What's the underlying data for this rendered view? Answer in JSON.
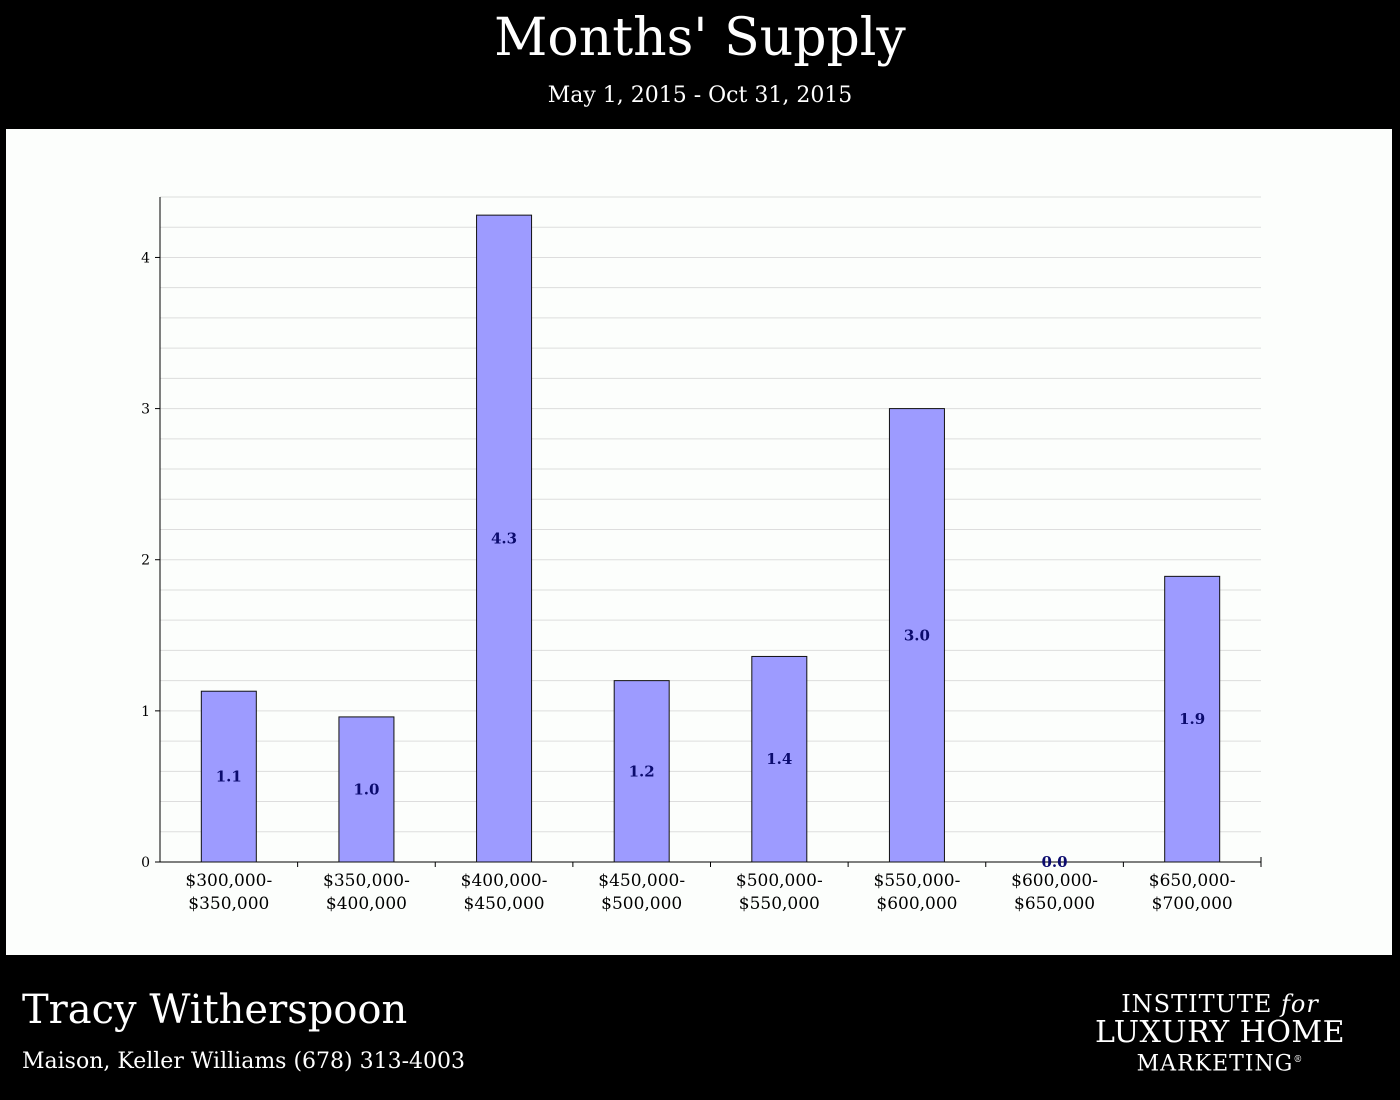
{
  "header": {
    "title": "Months' Supply",
    "subtitle": "May 1, 2015 - Oct 31, 2015"
  },
  "footer": {
    "agent_name": "Tracy Witherspoon",
    "company_line": "Maison, Keller Williams (678) 313-4003",
    "logo": {
      "line1_a": "INSTITUTE ",
      "line1_b": "for",
      "line2": "LUXURY HOME",
      "line3": "MARKETING",
      "mark": "®"
    }
  },
  "colors": {
    "bar_fill": "#9d9bff",
    "bar_stroke": "#111111",
    "label_text": "#0b0b6e",
    "grid": "#dddddd",
    "panel_bg": "#fcfefc"
  },
  "chart_data": {
    "type": "bar",
    "categories": [
      [
        "$300,000-",
        "$350,000"
      ],
      [
        "$350,000-",
        "$400,000"
      ],
      [
        "$400,000-",
        "$450,000"
      ],
      [
        "$450,000-",
        "$500,000"
      ],
      [
        "$500,000-",
        "$550,000"
      ],
      [
        "$550,000-",
        "$600,000"
      ],
      [
        "$600,000-",
        "$650,000"
      ],
      [
        "$650,000-",
        "$700,000"
      ]
    ],
    "values": [
      1.13,
      0.96,
      4.28,
      1.2,
      1.36,
      3.0,
      0.0,
      1.89
    ],
    "value_labels": [
      "1.1",
      "1.0",
      "4.3",
      "1.2",
      "1.4",
      "3.0",
      "0.0",
      "1.9"
    ],
    "yticks": [
      "0",
      "1",
      "2",
      "3",
      "4"
    ],
    "ylim": [
      0,
      4.4
    ],
    "grid": true,
    "legend": false
  }
}
